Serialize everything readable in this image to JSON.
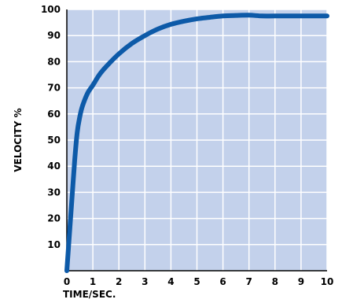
{
  "chart_data": {
    "type": "line",
    "title": "",
    "xlabel": "TIME/SEC.",
    "ylabel": "VELOCITY %",
    "xlim": [
      0,
      10
    ],
    "ylim": [
      0,
      100
    ],
    "x_ticks": [
      0,
      1,
      2,
      3,
      4,
      5,
      6,
      7,
      8,
      9,
      10
    ],
    "y_ticks": [
      10,
      20,
      30,
      40,
      50,
      60,
      70,
      80,
      90,
      100
    ],
    "grid": true,
    "colors": {
      "plot_background": "#c3d1eb",
      "grid": "#ffffff",
      "line": "#0d5aa8",
      "axis": "#000000"
    },
    "series": [
      {
        "x": [
          0,
          0.1,
          0.2,
          0.3,
          0.4,
          0.5,
          0.6,
          0.8,
          1.0,
          1.25,
          1.5,
          2.0,
          2.5,
          3.0,
          3.5,
          4.0,
          4.5,
          5.0,
          5.5,
          6.0,
          6.5,
          7.0,
          7.5,
          8.0,
          9.0,
          10.0
        ],
        "y": [
          0,
          14,
          28,
          42,
          53,
          59,
          63,
          68,
          71,
          75,
          78,
          83,
          87,
          90,
          92.5,
          94.3,
          95.5,
          96.4,
          97.0,
          97.5,
          97.7,
          97.8,
          97.5,
          97.5,
          97.5,
          97.5
        ]
      }
    ]
  }
}
